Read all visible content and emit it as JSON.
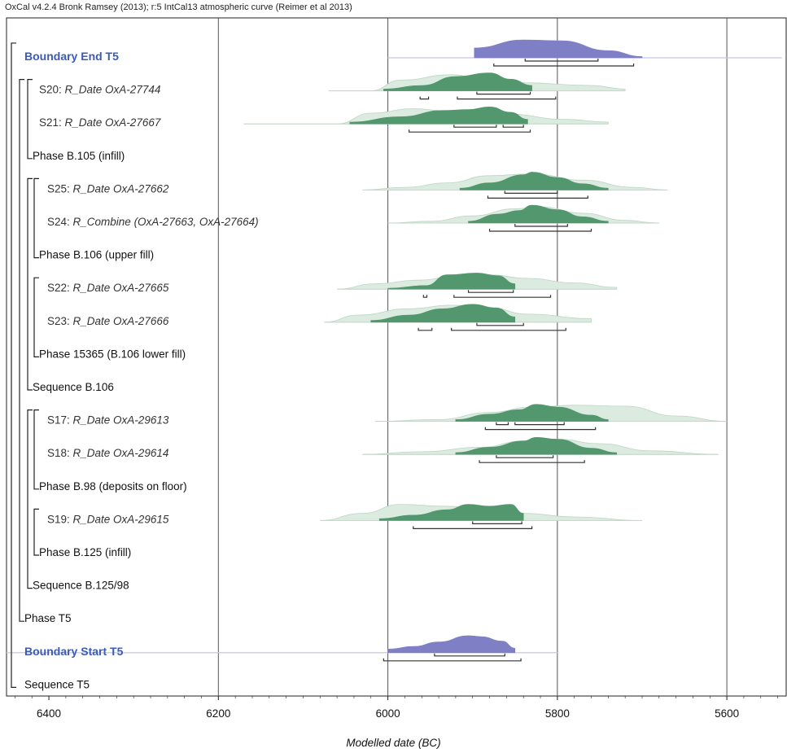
{
  "header": "OxCal v4.2.4 Bronk Ramsey (2013); r:5 IntCal13 atmospheric curve (Reimer et al 2013)",
  "colors": {
    "boundary": "#7f7fc6",
    "prior_boundary": "#c8c8e6",
    "posterior": "#52976d",
    "likelihood": "#dcebe0",
    "range": "#333333"
  },
  "chart_data": {
    "type": "oxcal-multiplot",
    "title": "",
    "xlabel": "Modelled date (BC)",
    "xlim": [
      6450,
      5530
    ],
    "xticks": [
      6400,
      6200,
      6000,
      5800,
      5600
    ],
    "rows": [
      {
        "label": "Boundary End T5",
        "kind": "boundary",
        "depth": 0,
        "posterior": [
          [
            5898,
            0.55
          ],
          [
            5840,
            1
          ],
          [
            5795,
            0.95
          ],
          [
            5740,
            0.4
          ],
          [
            5700,
            0.07
          ]
        ],
        "prior": [
          [
            6000,
            0
          ],
          [
            5640,
            0
          ],
          [
            5535,
            0
          ]
        ],
        "ranges_68": [
          [
            5838,
            5752
          ]
        ],
        "ranges_95": [
          [
            5875,
            5710
          ]
        ]
      },
      {
        "label_plain": "S20: ",
        "label_italic": "R_Date OxA-27744",
        "kind": "date",
        "depth": 2,
        "likelihood": [
          [
            6070,
            0
          ],
          [
            6020,
            0
          ],
          [
            5985,
            0.6
          ],
          [
            5925,
            0.9
          ],
          [
            5880,
            0.5
          ],
          [
            5840,
            0.45
          ],
          [
            5760,
            0.3
          ],
          [
            5720,
            0.1
          ]
        ],
        "posterior": [
          [
            6005,
            0.1
          ],
          [
            5960,
            0.3
          ],
          [
            5920,
            0.8
          ],
          [
            5880,
            1
          ],
          [
            5855,
            0.65
          ],
          [
            5830,
            0.3
          ]
        ],
        "ranges_68": [
          [
            5895,
            5832
          ]
        ],
        "ranges_95": [
          [
            5962,
            5952
          ],
          [
            5918,
            5802
          ]
        ]
      },
      {
        "label_plain": "S21: ",
        "label_italic": "R_Date OxA-27667",
        "kind": "date",
        "depth": 2,
        "likelihood": [
          [
            6170,
            0
          ],
          [
            6060,
            0
          ],
          [
            6020,
            0.6
          ],
          [
            5970,
            0.85
          ],
          [
            5925,
            0.7
          ],
          [
            5860,
            0.55
          ],
          [
            5790,
            0.25
          ],
          [
            5740,
            0.1
          ]
        ],
        "posterior": [
          [
            6045,
            0.1
          ],
          [
            5985,
            0.4
          ],
          [
            5935,
            0.75
          ],
          [
            5905,
            0.8
          ],
          [
            5880,
            0.95
          ],
          [
            5855,
            0.65
          ],
          [
            5835,
            0.25
          ]
        ],
        "ranges_68": [
          [
            5922,
            5872
          ],
          [
            5864,
            5840
          ]
        ],
        "ranges_95": [
          [
            5975,
            5832
          ]
        ]
      },
      {
        "label": "Phase B.105 (infill)",
        "kind": "group",
        "depth": 1
      },
      {
        "label_plain": "S25: ",
        "label_italic": "R_Date OxA-27662",
        "kind": "date",
        "depth": 3,
        "likelihood": [
          [
            6030,
            0
          ],
          [
            5980,
            0.15
          ],
          [
            5930,
            0.4
          ],
          [
            5880,
            0.8
          ],
          [
            5830,
            0.9
          ],
          [
            5770,
            0.55
          ],
          [
            5710,
            0.15
          ],
          [
            5670,
            0
          ]
        ],
        "posterior": [
          [
            5915,
            0.1
          ],
          [
            5880,
            0.4
          ],
          [
            5840,
            0.85
          ],
          [
            5830,
            1
          ],
          [
            5800,
            0.7
          ],
          [
            5770,
            0.35
          ],
          [
            5740,
            0.1
          ]
        ],
        "ranges_68": [
          [
            5862,
            5800
          ]
        ],
        "ranges_95": [
          [
            5882,
            5764
          ]
        ]
      },
      {
        "label_plain": "S24: ",
        "label_italic": "R_Combine (OxA-27663, OxA-27664)",
        "kind": "date",
        "depth": 3,
        "likelihood": [
          [
            6000,
            0
          ],
          [
            5950,
            0.1
          ],
          [
            5900,
            0.4
          ],
          [
            5850,
            0.8
          ],
          [
            5820,
            0.9
          ],
          [
            5770,
            0.55
          ],
          [
            5720,
            0.15
          ],
          [
            5680,
            0
          ]
        ],
        "posterior": [
          [
            5905,
            0.1
          ],
          [
            5870,
            0.5
          ],
          [
            5845,
            0.7
          ],
          [
            5830,
            1
          ],
          [
            5800,
            0.75
          ],
          [
            5770,
            0.35
          ],
          [
            5740,
            0.1
          ]
        ],
        "ranges_68": [
          [
            5850,
            5788
          ]
        ],
        "ranges_95": [
          [
            5880,
            5760
          ]
        ]
      },
      {
        "label": "Phase B.106 (upper fill)",
        "kind": "group",
        "depth": 2
      },
      {
        "label_plain": "S22: ",
        "label_italic": "R_Date OxA-27665",
        "kind": "date",
        "depth": 3,
        "likelihood": [
          [
            6060,
            0
          ],
          [
            6015,
            0.3
          ],
          [
            5965,
            0.5
          ],
          [
            5920,
            0.7
          ],
          [
            5880,
            0.8
          ],
          [
            5835,
            0.6
          ],
          [
            5780,
            0.35
          ],
          [
            5730,
            0.1
          ]
        ],
        "posterior": [
          [
            6000,
            0.05
          ],
          [
            5955,
            0.2
          ],
          [
            5930,
            0.8
          ],
          [
            5895,
            0.9
          ],
          [
            5870,
            0.75
          ],
          [
            5850,
            0.3
          ]
        ],
        "ranges_68": [
          [
            5905,
            5852
          ]
        ],
        "ranges_95": [
          [
            5958,
            5954
          ],
          [
            5922,
            5808
          ]
        ]
      },
      {
        "label_plain": "S23: ",
        "label_italic": "R_Date OxA-27666",
        "kind": "date",
        "depth": 3,
        "likelihood": [
          [
            6075,
            0
          ],
          [
            6035,
            0.4
          ],
          [
            5975,
            0.75
          ],
          [
            5925,
            0.95
          ],
          [
            5880,
            0.8
          ],
          [
            5835,
            0.45
          ],
          [
            5760,
            0.2
          ]
        ],
        "posterior": [
          [
            6020,
            0.1
          ],
          [
            5975,
            0.4
          ],
          [
            5935,
            0.75
          ],
          [
            5900,
            1
          ],
          [
            5872,
            0.8
          ],
          [
            5850,
            0.3
          ]
        ],
        "ranges_68": [
          [
            5895,
            5840
          ]
        ],
        "ranges_95": [
          [
            5964,
            5948
          ],
          [
            5925,
            5790
          ]
        ]
      },
      {
        "label": "Phase 15365 (B.106 lower fill)",
        "kind": "group",
        "depth": 2
      },
      {
        "label": "Sequence B.106",
        "kind": "group",
        "depth": 1
      },
      {
        "label_plain": "S17: ",
        "label_italic": "R_Date OxA-29613",
        "kind": "date",
        "depth": 3,
        "likelihood": [
          [
            6015,
            0
          ],
          [
            5940,
            0.1
          ],
          [
            5880,
            0.5
          ],
          [
            5830,
            0.8
          ],
          [
            5780,
            0.9
          ],
          [
            5720,
            0.85
          ],
          [
            5660,
            0.3
          ],
          [
            5600,
            0
          ]
        ],
        "posterior": [
          [
            5920,
            0.1
          ],
          [
            5880,
            0.4
          ],
          [
            5845,
            0.65
          ],
          [
            5825,
            0.95
          ],
          [
            5800,
            0.8
          ],
          [
            5760,
            0.35
          ],
          [
            5740,
            0.1
          ]
        ],
        "ranges_68": [
          [
            5872,
            5858
          ],
          [
            5850,
            5792
          ]
        ],
        "ranges_95": [
          [
            5885,
            5755
          ]
        ]
      },
      {
        "label_plain": "S18: ",
        "label_italic": "R_Date OxA-29614",
        "kind": "date",
        "depth": 3,
        "likelihood": [
          [
            6030,
            0
          ],
          [
            5960,
            0.15
          ],
          [
            5890,
            0.4
          ],
          [
            5840,
            0.75
          ],
          [
            5800,
            0.85
          ],
          [
            5750,
            0.6
          ],
          [
            5690,
            0.2
          ],
          [
            5610,
            0
          ]
        ],
        "posterior": [
          [
            5920,
            0.1
          ],
          [
            5880,
            0.4
          ],
          [
            5840,
            0.75
          ],
          [
            5825,
            0.95
          ],
          [
            5800,
            0.85
          ],
          [
            5760,
            0.35
          ],
          [
            5730,
            0.1
          ]
        ],
        "ranges_68": [
          [
            5872,
            5805
          ]
        ],
        "ranges_95": [
          [
            5892,
            5768
          ]
        ]
      },
      {
        "label": "Phase B.98 (deposits on floor)",
        "kind": "group",
        "depth": 2
      },
      {
        "label_plain": "S19: ",
        "label_italic": "R_Date OxA-29615",
        "kind": "date",
        "depth": 3,
        "likelihood": [
          [
            6080,
            0
          ],
          [
            6030,
            0.4
          ],
          [
            5985,
            0.9
          ],
          [
            5935,
            0.8
          ],
          [
            5890,
            0.7
          ],
          [
            5840,
            0.4
          ],
          [
            5780,
            0.2
          ],
          [
            5700,
            0
          ]
        ],
        "posterior": [
          [
            6010,
            0.1
          ],
          [
            5970,
            0.3
          ],
          [
            5930,
            0.6
          ],
          [
            5905,
            0.9
          ],
          [
            5880,
            0.8
          ],
          [
            5855,
            0.9
          ],
          [
            5840,
            0.4
          ]
        ],
        "ranges_68": [
          [
            5900,
            5842
          ]
        ],
        "ranges_95": [
          [
            5970,
            5830
          ]
        ]
      },
      {
        "label": "Phase B.125 (infill)",
        "kind": "group",
        "depth": 2
      },
      {
        "label": "Sequence B.125/98",
        "kind": "group",
        "depth": 1
      },
      {
        "label": "Phase T5",
        "kind": "group",
        "depth": 0
      },
      {
        "label": "Boundary Start T5",
        "kind": "boundary",
        "depth": 0,
        "posterior": [
          [
            6000,
            0.2
          ],
          [
            5970,
            0.35
          ],
          [
            5940,
            0.6
          ],
          [
            5905,
            0.95
          ],
          [
            5890,
            0.9
          ],
          [
            5865,
            0.65
          ],
          [
            5850,
            0.25
          ]
        ],
        "prior": [
          [
            6450,
            0
          ],
          [
            6080,
            0
          ],
          [
            5800,
            0
          ]
        ],
        "ranges_68": [
          [
            5945,
            5862
          ]
        ],
        "ranges_95": [
          [
            6005,
            5843
          ]
        ]
      },
      {
        "label": "Sequence T5",
        "kind": "group",
        "depth": 0
      }
    ]
  }
}
